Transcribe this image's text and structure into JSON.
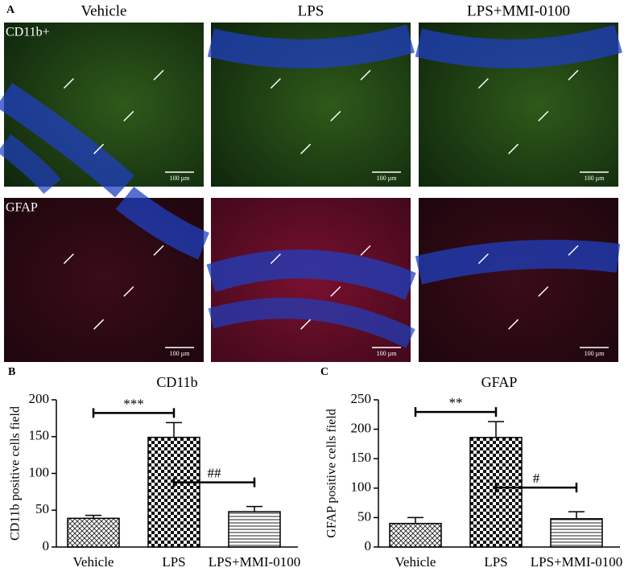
{
  "panel_a": {
    "letter": "A",
    "columns": [
      "Vehicle",
      "LPS",
      "LPS+MMI-0100"
    ],
    "rows": [
      "CD11b+",
      "GFAP"
    ],
    "scale_bar": "100 µm"
  },
  "chart_data": [
    {
      "type": "bar",
      "letter": "B",
      "title": "CD11b",
      "ylabel": "CD11b positive cells field",
      "categories": [
        "Vehicle",
        "LPS",
        "LPS+MMI-0100"
      ],
      "values": [
        39,
        149,
        48
      ],
      "errors": [
        4,
        20,
        7
      ],
      "patterns": [
        "crosshatch",
        "checker",
        "hlines"
      ],
      "annotations": [
        "***",
        "##"
      ],
      "ylim": [
        0,
        200
      ],
      "yticks": [
        0,
        50,
        100,
        150,
        200
      ]
    },
    {
      "type": "bar",
      "letter": "C",
      "title": "GFAP",
      "ylabel": "GFAP positive cells field",
      "categories": [
        "Vehicle",
        "LPS",
        "LPS+MMI-0100"
      ],
      "values": [
        40,
        186,
        48
      ],
      "errors": [
        10,
        27,
        12
      ],
      "patterns": [
        "crosshatch",
        "checker",
        "hlines"
      ],
      "annotations": [
        "**",
        "#"
      ],
      "ylim": [
        0,
        250
      ],
      "yticks": [
        0,
        50,
        100,
        150,
        200,
        250
      ]
    }
  ]
}
